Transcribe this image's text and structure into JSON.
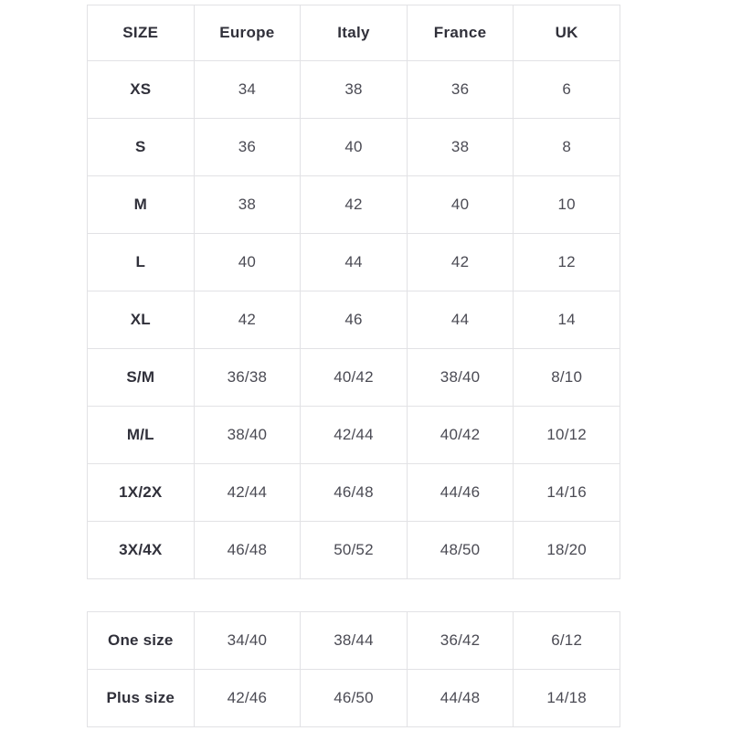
{
  "chart_data": [
    {
      "type": "table",
      "name": "size-conversion-table",
      "columns": [
        "SIZE",
        "Europe",
        "Italy",
        "France",
        "UK"
      ],
      "rows": [
        [
          "XS",
          "34",
          "38",
          "36",
          "6"
        ],
        [
          "S",
          "36",
          "40",
          "38",
          "8"
        ],
        [
          "M",
          "38",
          "42",
          "40",
          "10"
        ],
        [
          "L",
          "40",
          "44",
          "42",
          "12"
        ],
        [
          "XL",
          "42",
          "46",
          "44",
          "14"
        ],
        [
          "S/M",
          "36/38",
          "40/42",
          "38/40",
          "8/10"
        ],
        [
          "M/L",
          "38/40",
          "42/44",
          "40/42",
          "10/12"
        ],
        [
          "1X/2X",
          "42/44",
          "46/48",
          "44/46",
          "14/16"
        ],
        [
          "3X/4X",
          "46/48",
          "50/52",
          "48/50",
          "18/20"
        ]
      ]
    },
    {
      "type": "table",
      "name": "special-size-table",
      "columns": [],
      "rows": [
        [
          "One size",
          "34/40",
          "38/44",
          "36/42",
          "6/12"
        ],
        [
          "Plus size",
          "42/46",
          "46/50",
          "44/48",
          "14/18"
        ]
      ]
    }
  ],
  "colors": {
    "background": "#ffffff",
    "border": "#e2e2e5",
    "header_text": "#30303a",
    "value_text": "#4b4b54"
  }
}
